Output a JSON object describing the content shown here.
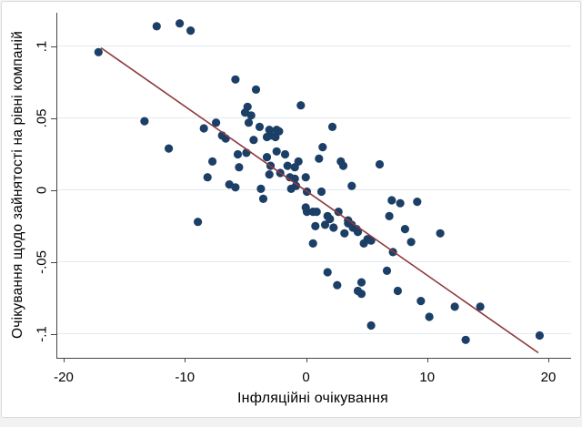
{
  "figure": {
    "page_background": "#f2f2f2",
    "card_background": "#ffffff",
    "card_border_color": "#dcdcdc"
  },
  "chart_data": {
    "type": "scatter",
    "title": "",
    "xlabel": "Інфляційні очікування",
    "ylabel": "Очікування щодо зайнятості на рівні компаній",
    "xlim": [
      -20.6,
      21.8
    ],
    "ylim": [
      -0.1165,
      0.1234
    ],
    "grid": "horizontal-only",
    "legend": "none",
    "x_ticks": {
      "values": [
        -20,
        -10,
        0,
        10,
        20
      ],
      "labels": [
        "-20",
        "-10",
        "0",
        "10",
        "20"
      ]
    },
    "y_ticks": {
      "values": [
        -0.1,
        -0.05,
        0,
        0.05,
        0.1
      ],
      "labels": [
        "-.1",
        "-.05",
        "0",
        ".05",
        ".1"
      ]
    },
    "marker_color": "#1b3f66",
    "fit_line_color": "#8e3a3e",
    "grid_color": "#e4eaee",
    "axis_color": "#454545",
    "fit_line": {
      "x1": -17.0,
      "y1": 0.099,
      "x2": 19.1,
      "y2": -0.113
    },
    "points": [
      [
        -12.4,
        0.114
      ],
      [
        -10.5,
        0.116
      ],
      [
        -9.6,
        0.111
      ],
      [
        -17.2,
        0.096
      ],
      [
        -5.9,
        0.077
      ],
      [
        -4.2,
        0.07
      ],
      [
        -0.5,
        0.059
      ],
      [
        -4.9,
        0.058
      ],
      [
        -5.1,
        0.054
      ],
      [
        -4.6,
        0.052
      ],
      [
        -4.8,
        0.047
      ],
      [
        -13.4,
        0.048
      ],
      [
        -7.5,
        0.047
      ],
      [
        -3.9,
        0.044
      ],
      [
        -3.1,
        0.042
      ],
      [
        -2.5,
        0.042
      ],
      [
        -2.3,
        0.041
      ],
      [
        -3.0,
        0.038
      ],
      [
        -2.6,
        0.037
      ],
      [
        -3.3,
        0.037
      ],
      [
        -4.4,
        0.035
      ],
      [
        -8.5,
        0.043
      ],
      [
        -7.0,
        0.038
      ],
      [
        -6.7,
        0.036
      ],
      [
        2.1,
        0.044
      ],
      [
        -11.4,
        0.029
      ],
      [
        -2.5,
        0.027
      ],
      [
        -1.8,
        0.025
      ],
      [
        -5.7,
        0.025
      ],
      [
        -5.0,
        0.026
      ],
      [
        -3.3,
        0.023
      ],
      [
        -3.0,
        0.017
      ],
      [
        -1.6,
        0.017
      ],
      [
        -0.7,
        0.02
      ],
      [
        -1.0,
        0.016
      ],
      [
        -0.1,
        0.009
      ],
      [
        -2.2,
        0.012
      ],
      [
        -3.1,
        0.011
      ],
      [
        -1.4,
        0.009
      ],
      [
        -1.0,
        0.008
      ],
      [
        -1.3,
        0.001
      ],
      [
        -0.9,
        0.003
      ],
      [
        0.0,
        -0.001
      ],
      [
        1.2,
        -0.001
      ],
      [
        -3.8,
        0.001
      ],
      [
        -3.6,
        -0.006
      ],
      [
        -8.2,
        0.009
      ],
      [
        -7.8,
        0.02
      ],
      [
        -5.6,
        0.016
      ],
      [
        -6.4,
        0.004
      ],
      [
        -5.9,
        0.002
      ],
      [
        -9.0,
        -0.022
      ],
      [
        1.0,
        0.022
      ],
      [
        1.3,
        0.03
      ],
      [
        2.8,
        0.02
      ],
      [
        3.0,
        0.017
      ],
      [
        6.0,
        0.018
      ],
      [
        3.7,
        0.003
      ],
      [
        7.0,
        -0.007
      ],
      [
        7.7,
        -0.009
      ],
      [
        9.1,
        -0.008
      ],
      [
        6.8,
        -0.018
      ],
      [
        8.1,
        -0.027
      ],
      [
        11.0,
        -0.03
      ],
      [
        8.6,
        -0.036
      ],
      [
        7.1,
        -0.043
      ],
      [
        -0.1,
        -0.012
      ],
      [
        0.0,
        -0.015
      ],
      [
        0.5,
        -0.015
      ],
      [
        0.8,
        -0.015
      ],
      [
        1.7,
        -0.018
      ],
      [
        1.9,
        -0.02
      ],
      [
        1.5,
        -0.024
      ],
      [
        2.2,
        -0.026
      ],
      [
        0.7,
        -0.025
      ],
      [
        2.6,
        -0.015
      ],
      [
        3.4,
        -0.021
      ],
      [
        3.4,
        -0.023
      ],
      [
        3.7,
        -0.024
      ],
      [
        3.8,
        -0.026
      ],
      [
        4.1,
        -0.027
      ],
      [
        4.2,
        -0.029
      ],
      [
        3.1,
        -0.03
      ],
      [
        5.0,
        -0.034
      ],
      [
        5.3,
        -0.035
      ],
      [
        4.7,
        -0.037
      ],
      [
        0.5,
        -0.037
      ],
      [
        1.7,
        -0.057
      ],
      [
        6.6,
        -0.056
      ],
      [
        2.5,
        -0.066
      ],
      [
        4.5,
        -0.064
      ],
      [
        4.2,
        -0.07
      ],
      [
        4.5,
        -0.072
      ],
      [
        7.5,
        -0.07
      ],
      [
        9.4,
        -0.077
      ],
      [
        10.1,
        -0.088
      ],
      [
        12.2,
        -0.081
      ],
      [
        14.3,
        -0.081
      ],
      [
        13.1,
        -0.104
      ],
      [
        19.2,
        -0.101
      ],
      [
        5.3,
        -0.094
      ]
    ]
  }
}
